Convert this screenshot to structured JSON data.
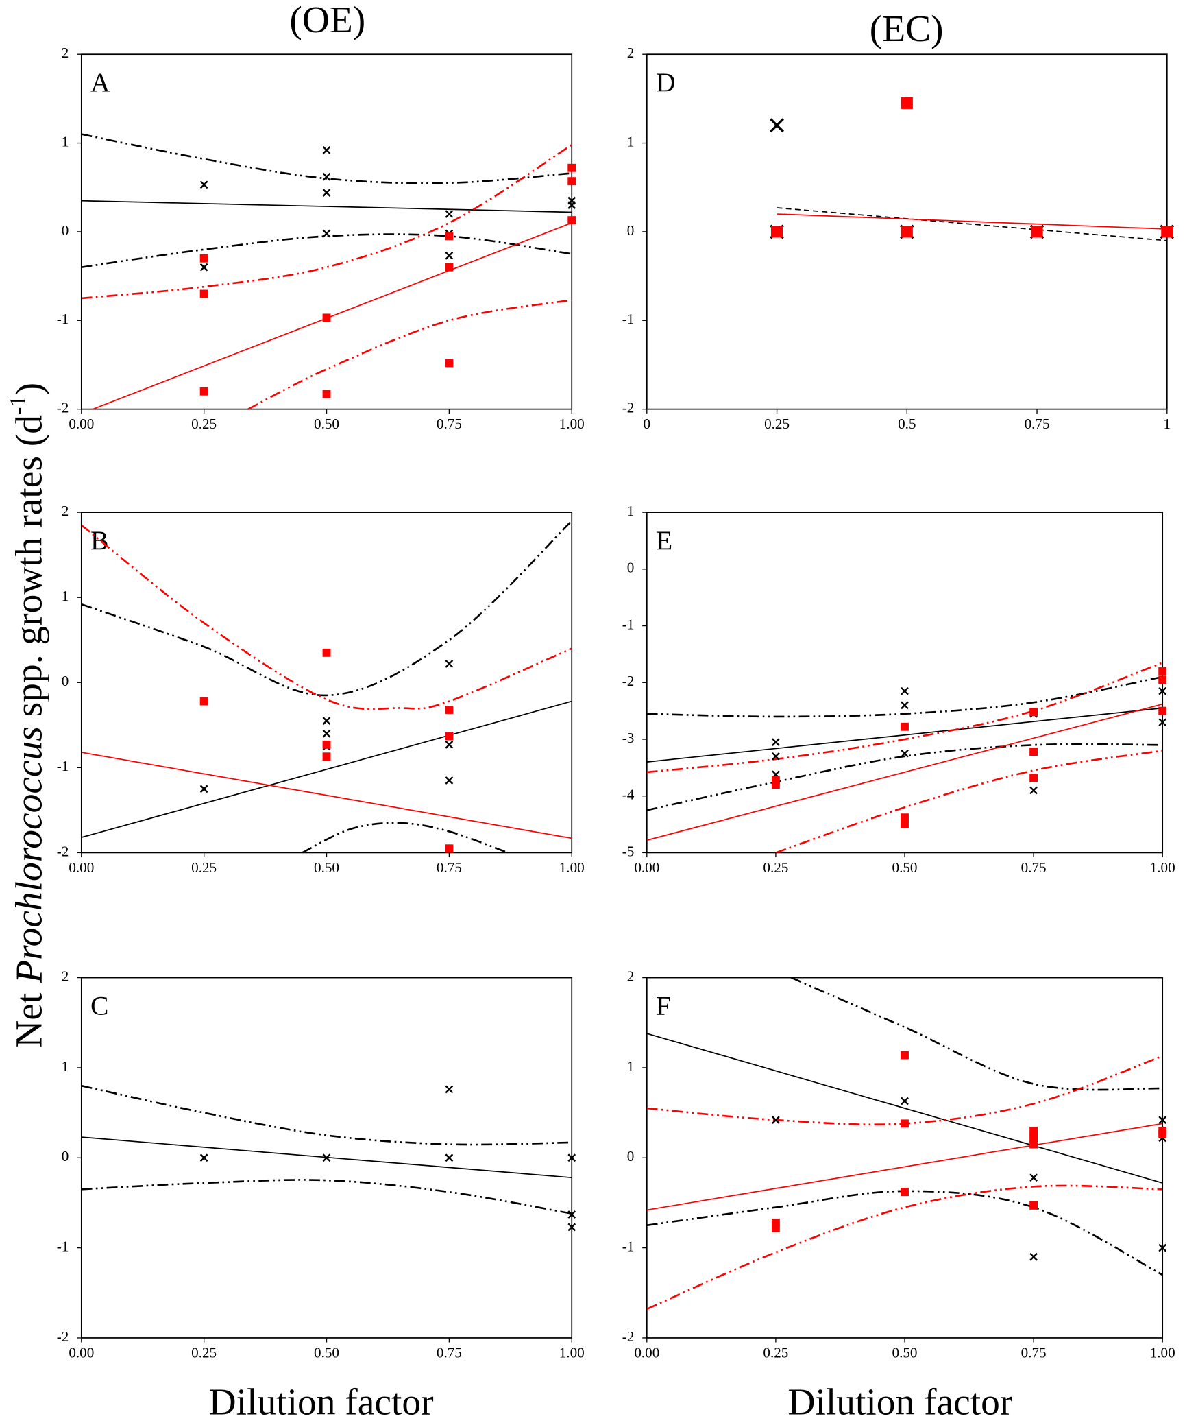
{
  "column_titles": [
    "(OE)",
    "(EC)"
  ],
  "ylabel": {
    "prefix": "Net",
    "italic": "Prochlorococcus",
    "rest": "spp. growth rates (d",
    "sup": "-1",
    "close": ")"
  },
  "xlabel": "Dilution factor",
  "chart_data": [
    {
      "type": "scatter",
      "label": "A",
      "xlim": [
        0,
        1
      ],
      "ylim": [
        -2,
        2
      ],
      "xticks": [
        {
          "value": 0,
          "label": "0.00"
        },
        {
          "value": 0.25,
          "label": "0.25"
        },
        {
          "value": 0.5,
          "label": "0.50"
        },
        {
          "value": 0.75,
          "label": "0.75"
        },
        {
          "value": 1,
          "label": "1.00"
        }
      ],
      "yticks": [
        -2,
        -1,
        0,
        1,
        2
      ],
      "series": [
        {
          "kind": "x",
          "color": "#000000",
          "x": [
            0.25,
            0.25,
            0.5,
            0.5,
            0.5,
            0.5,
            0.75,
            0.75,
            0.75,
            1,
            1
          ],
          "values": [
            0.53,
            -0.4,
            0.92,
            0.62,
            0.44,
            -0.02,
            0.2,
            -0.02,
            -0.27,
            0.35,
            0.3
          ]
        },
        {
          "kind": "square",
          "color": "#ff0000",
          "x": [
            0.25,
            0.25,
            0.25,
            0.5,
            0.5,
            0.75,
            0.75,
            0.75,
            1,
            1,
            1
          ],
          "values": [
            -0.3,
            -0.7,
            -1.8,
            -0.97,
            -1.83,
            -0.05,
            -0.4,
            -1.48,
            0.72,
            0.57,
            0.13
          ]
        },
        {
          "kind": "solid",
          "color": "#000000",
          "x": [
            0,
            1
          ],
          "values": [
            0.35,
            0.22
          ]
        },
        {
          "kind": "dashdot",
          "color": "#000000",
          "x": [
            0,
            0.25,
            0.5,
            0.75,
            1
          ],
          "values": [
            1.1,
            0.82,
            0.6,
            0.55,
            0.66
          ]
        },
        {
          "kind": "dashdot",
          "color": "#000000",
          "x": [
            0,
            0.25,
            0.5,
            0.75,
            1
          ],
          "values": [
            -0.4,
            -0.2,
            -0.05,
            -0.05,
            -0.25
          ]
        },
        {
          "kind": "solid",
          "color": "#ff0000",
          "x": [
            0,
            1
          ],
          "values": [
            -2.05,
            0.1
          ]
        },
        {
          "kind": "dashdot",
          "color": "#ff0000",
          "x": [
            0,
            0.25,
            0.5,
            0.75,
            1
          ],
          "values": [
            -0.75,
            -0.62,
            -0.4,
            0.1,
            0.98
          ]
        },
        {
          "kind": "dashdot",
          "color": "#ff0000",
          "x": [
            0.34,
            0.5,
            0.75,
            1
          ],
          "values": [
            -2,
            -1.55,
            -1.0,
            -0.77
          ]
        }
      ]
    },
    {
      "type": "scatter",
      "label": "B",
      "xlim": [
        0,
        1
      ],
      "ylim": [
        -2,
        2
      ],
      "xticks": [
        {
          "value": 0,
          "label": "0.00"
        },
        {
          "value": 0.25,
          "label": "0.25"
        },
        {
          "value": 0.5,
          "label": "0.50"
        },
        {
          "value": 0.75,
          "label": "0.75"
        },
        {
          "value": 1,
          "label": "1.00"
        }
      ],
      "yticks": [
        -2,
        -1,
        0,
        1,
        2
      ],
      "series": [
        {
          "kind": "x",
          "color": "#000000",
          "x": [
            0.25,
            0.5,
            0.5,
            0.5,
            0.75,
            0.75,
            0.75
          ],
          "values": [
            -1.25,
            -0.45,
            -0.6,
            -0.75,
            0.22,
            -0.73,
            -1.15
          ]
        },
        {
          "kind": "square",
          "color": "#ff0000",
          "x": [
            0.25,
            0.5,
            0.5,
            0.5,
            0.75,
            0.75,
            0.75
          ],
          "values": [
            -0.22,
            0.35,
            -0.73,
            -0.87,
            -0.32,
            -0.63,
            -1.95
          ]
        },
        {
          "kind": "solid",
          "color": "#000000",
          "x": [
            0,
            1
          ],
          "values": [
            -1.82,
            -0.22
          ]
        },
        {
          "kind": "dashdot",
          "color": "#000000",
          "x": [
            0,
            0.25,
            0.5,
            0.75,
            1
          ],
          "values": [
            0.92,
            0.42,
            -0.15,
            0.5,
            1.9
          ]
        },
        {
          "kind": "dashdot",
          "color": "#000000",
          "x": [
            0.45,
            0.55,
            0.65,
            0.75,
            0.87
          ],
          "values": [
            -2,
            -1.72,
            -1.65,
            -1.75,
            -2
          ]
        },
        {
          "kind": "solid",
          "color": "#ff0000",
          "x": [
            0,
            1
          ],
          "values": [
            -0.82,
            -1.83
          ]
        },
        {
          "kind": "dashdot",
          "color": "#ff0000",
          "x": [
            0,
            0.25,
            0.5,
            0.65,
            0.75,
            1
          ],
          "values": [
            1.85,
            0.7,
            -0.2,
            -0.3,
            -0.22,
            0.4
          ]
        }
      ]
    },
    {
      "type": "scatter",
      "label": "C",
      "xlim": [
        0,
        1
      ],
      "ylim": [
        -2,
        2
      ],
      "xticks": [
        {
          "value": 0,
          "label": "0.00"
        },
        {
          "value": 0.25,
          "label": "0.25"
        },
        {
          "value": 0.5,
          "label": "0.50"
        },
        {
          "value": 0.75,
          "label": "0.75"
        },
        {
          "value": 1,
          "label": "1.00"
        }
      ],
      "yticks": [
        -2,
        -1,
        0,
        1,
        2
      ],
      "series": [
        {
          "kind": "x",
          "color": "#000000",
          "x": [
            0.25,
            0.5,
            0.75,
            0.75,
            1,
            1,
            1
          ],
          "values": [
            0,
            0,
            0.76,
            0,
            0,
            -0.63,
            -0.77
          ]
        },
        {
          "kind": "solid",
          "color": "#000000",
          "x": [
            0,
            1
          ],
          "values": [
            0.23,
            -0.22
          ]
        },
        {
          "kind": "dashdot",
          "color": "#000000",
          "x": [
            0,
            0.25,
            0.5,
            0.75,
            1
          ],
          "values": [
            0.8,
            0.5,
            0.25,
            0.15,
            0.17
          ]
        },
        {
          "kind": "dashdot",
          "color": "#000000",
          "x": [
            0,
            0.25,
            0.5,
            0.75,
            1
          ],
          "values": [
            -0.35,
            -0.28,
            -0.25,
            -0.38,
            -0.62
          ]
        }
      ]
    },
    {
      "type": "scatter",
      "label": "D",
      "xlim": [
        0,
        1
      ],
      "ylim": [
        -2,
        2
      ],
      "xticks": [
        0,
        0.25,
        0.5,
        0.75,
        1
      ],
      "yticks": [
        -2,
        -1,
        0,
        1,
        2
      ],
      "series": [
        {
          "kind": "x",
          "color": "#000000",
          "x": [
            0.25,
            0.25,
            0.5,
            0.75,
            1
          ],
          "values": [
            1.2,
            0,
            0,
            0,
            0
          ]
        },
        {
          "kind": "square",
          "color": "#ff0000",
          "x": [
            0.5,
            0.25,
            0.5,
            0.75,
            1
          ],
          "values": [
            1.45,
            0,
            0,
            0,
            0
          ]
        },
        {
          "kind": "dashed",
          "color": "#000000",
          "x": [
            0.25,
            1
          ],
          "values": [
            0.27,
            -0.1
          ]
        },
        {
          "kind": "solid",
          "color": "#ff0000",
          "x": [
            0.25,
            1
          ],
          "values": [
            0.2,
            0.03
          ]
        }
      ]
    },
    {
      "type": "scatter",
      "label": "E",
      "xlim": [
        0,
        1
      ],
      "ylim": [
        -5,
        1
      ],
      "xticks": [
        {
          "value": 0,
          "label": "0.00"
        },
        {
          "value": 0.25,
          "label": "0.25"
        },
        {
          "value": 0.5,
          "label": "0.50"
        },
        {
          "value": 0.75,
          "label": "0.75"
        },
        {
          "value": 1,
          "label": "1.00"
        }
      ],
      "yticks": [
        -5,
        -4,
        -3,
        -2,
        -1,
        0,
        1
      ],
      "series": [
        {
          "kind": "x",
          "color": "#000000",
          "x": [
            0.25,
            0.25,
            0.25,
            0.5,
            0.5,
            0.5,
            0.75,
            0.75,
            1,
            1
          ],
          "values": [
            -3.05,
            -3.3,
            -3.62,
            -2.15,
            -2.4,
            -3.25,
            -2.55,
            -3.9,
            -2.15,
            -2.7
          ]
        },
        {
          "kind": "square",
          "color": "#ff0000",
          "x": [
            0.25,
            0.25,
            0.5,
            0.5,
            0.5,
            0.75,
            0.75,
            0.75,
            1,
            1,
            1
          ],
          "values": [
            -3.72,
            -3.8,
            -2.78,
            -4.38,
            -4.5,
            -3.22,
            -3.68,
            -2.52,
            -1.8,
            -1.95,
            -2.5
          ]
        },
        {
          "kind": "solid",
          "color": "#000000",
          "x": [
            0,
            1
          ],
          "values": [
            -3.4,
            -2.45
          ]
        },
        {
          "kind": "dashdot",
          "color": "#000000",
          "x": [
            0,
            0.25,
            0.5,
            0.75,
            1
          ],
          "values": [
            -2.55,
            -2.6,
            -2.55,
            -2.35,
            -1.9
          ]
        },
        {
          "kind": "dashdot",
          "color": "#000000",
          "x": [
            0,
            0.25,
            0.5,
            0.75,
            1
          ],
          "values": [
            -4.25,
            -3.75,
            -3.3,
            -3.1,
            -3.1
          ]
        },
        {
          "kind": "solid",
          "color": "#ff0000",
          "x": [
            0,
            1
          ],
          "values": [
            -4.78,
            -2.38
          ]
        },
        {
          "kind": "dashdot",
          "color": "#ff0000",
          "x": [
            0,
            0.25,
            0.5,
            0.75,
            1
          ],
          "values": [
            -3.58,
            -3.35,
            -3.0,
            -2.5,
            -1.65
          ]
        },
        {
          "kind": "dashdot",
          "color": "#ff0000",
          "x": [
            0.25,
            0.5,
            0.75,
            1
          ],
          "values": [
            -5,
            -4.2,
            -3.55,
            -3.2
          ]
        }
      ]
    },
    {
      "type": "scatter",
      "label": "F",
      "xlim": [
        0,
        1
      ],
      "ylim": [
        -2,
        2
      ],
      "xticks": [
        {
          "value": 0,
          "label": "0.00"
        },
        {
          "value": 0.25,
          "label": "0.25"
        },
        {
          "value": 0.5,
          "label": "0.50"
        },
        {
          "value": 0.75,
          "label": "0.75"
        },
        {
          "value": 1,
          "label": "1.00"
        }
      ],
      "yticks": [
        -2,
        -1,
        0,
        1,
        2
      ],
      "series": [
        {
          "kind": "x",
          "color": "#000000",
          "x": [
            0.25,
            0.5,
            0.75,
            0.75,
            1,
            1,
            1
          ],
          "values": [
            0.42,
            0.63,
            -0.22,
            -1.1,
            0.42,
            0.22,
            -1.0
          ]
        },
        {
          "kind": "square",
          "color": "#ff0000",
          "x": [
            0.25,
            0.25,
            0.5,
            0.5,
            0.5,
            0.75,
            0.75,
            0.75,
            0.75,
            1,
            1
          ],
          "values": [
            -0.72,
            -0.78,
            1.14,
            0.38,
            -0.38,
            0.3,
            0.22,
            0.15,
            -0.53,
            0.3,
            0.26
          ]
        },
        {
          "kind": "solid",
          "color": "#000000",
          "x": [
            0,
            1
          ],
          "values": [
            1.38,
            -0.28
          ]
        },
        {
          "kind": "dashdot",
          "color": "#000000",
          "x": [
            0.28,
            0.5,
            0.75,
            1
          ],
          "values": [
            2,
            1.45,
            0.82,
            0.77
          ]
        },
        {
          "kind": "dashdot",
          "color": "#000000",
          "x": [
            0,
            0.25,
            0.5,
            0.75,
            1
          ],
          "values": [
            -0.75,
            -0.55,
            -0.37,
            -0.55,
            -1.3
          ]
        },
        {
          "kind": "solid",
          "color": "#ff0000",
          "x": [
            0,
            1
          ],
          "values": [
            -0.58,
            0.38
          ]
        },
        {
          "kind": "dashdot",
          "color": "#ff0000",
          "x": [
            0,
            0.25,
            0.5,
            0.75,
            1
          ],
          "values": [
            0.55,
            0.42,
            0.38,
            0.6,
            1.13
          ]
        },
        {
          "kind": "dashdot",
          "color": "#ff0000",
          "x": [
            0,
            0.25,
            0.5,
            0.75,
            1
          ],
          "values": [
            -1.68,
            -1.05,
            -0.55,
            -0.32,
            -0.35
          ]
        }
      ]
    }
  ]
}
